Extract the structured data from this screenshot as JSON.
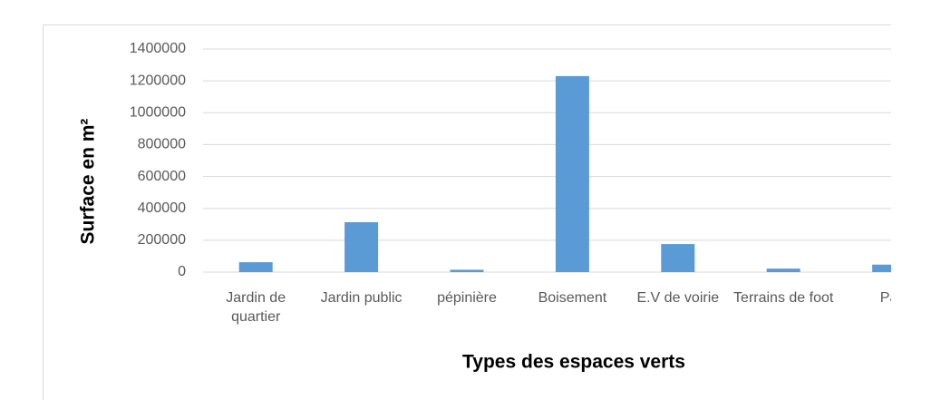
{
  "chart_data": {
    "type": "bar",
    "x_label": "Types des espaces verts",
    "y_label": "Surface en m²",
    "categories": [
      "Jardin de quartier",
      "Jardin public",
      "pépinière",
      "Boisement",
      "E.V de voirie",
      "Terrains de foot",
      "Pa"
    ],
    "values": [
      62000,
      313000,
      15000,
      1230000,
      176000,
      22000,
      47000
    ],
    "color": "#5b9bd5",
    "ylim": [
      0,
      1400000
    ],
    "yticks": [
      0,
      200000,
      400000,
      600000,
      800000,
      1000000,
      1200000,
      1400000
    ],
    "grid": true
  }
}
